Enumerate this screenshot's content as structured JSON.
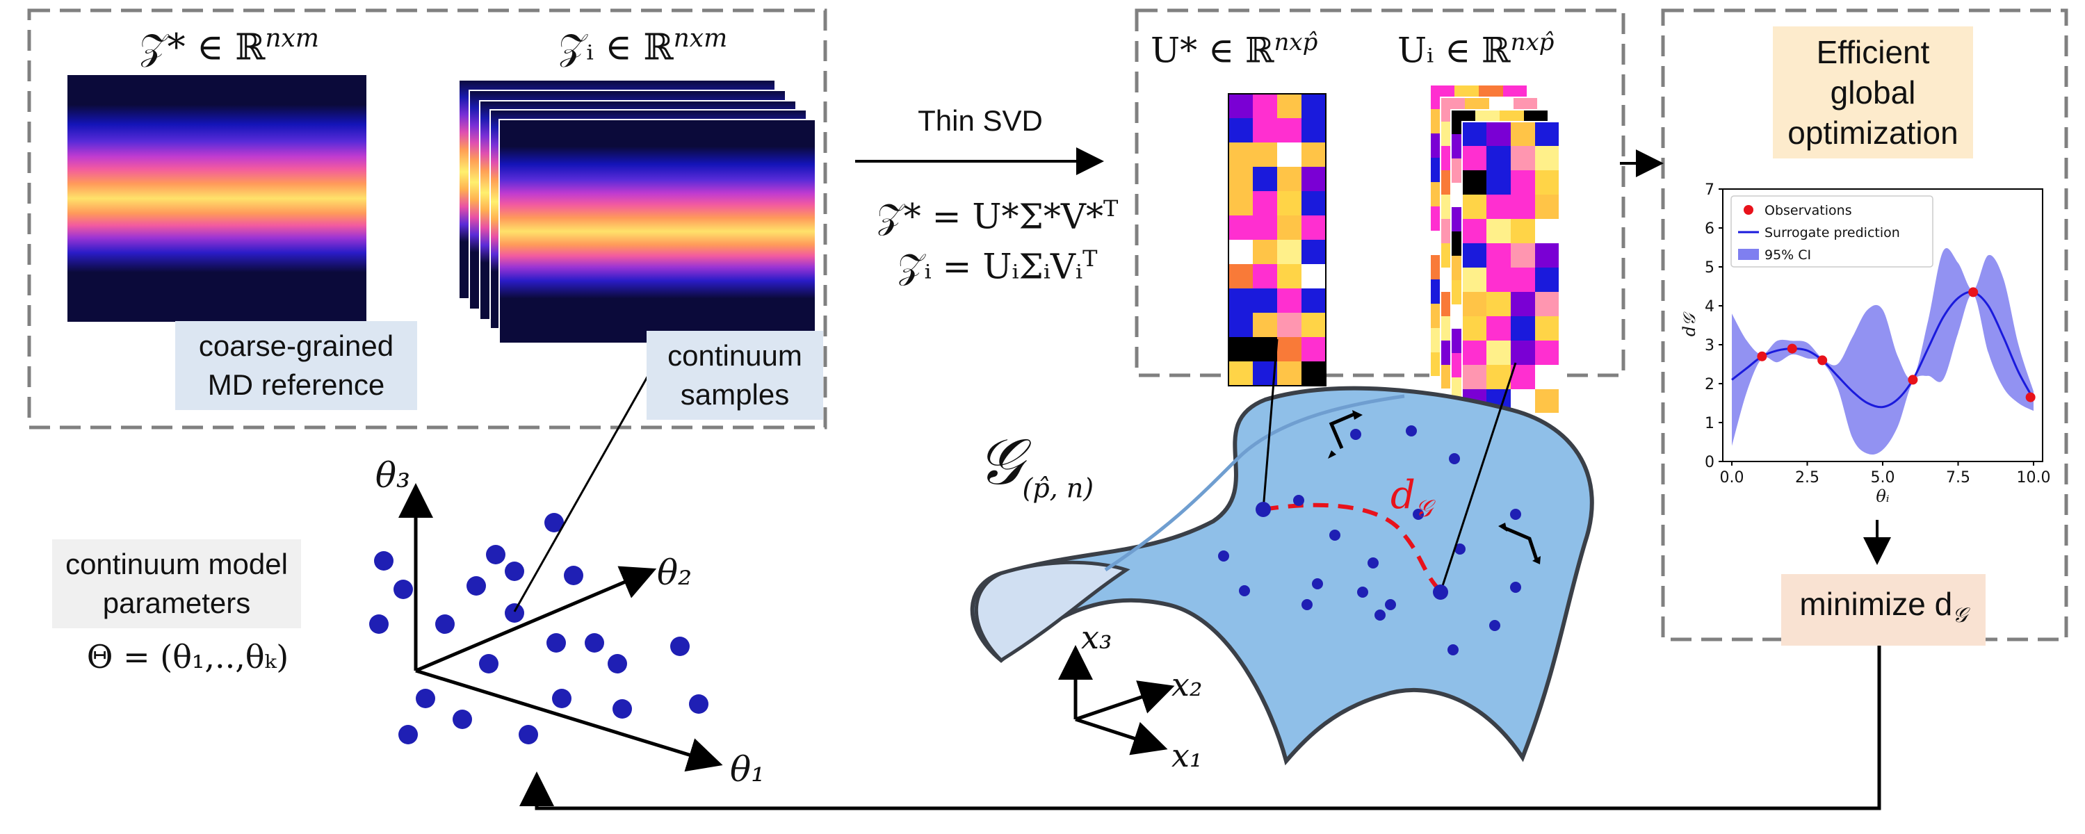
{
  "reference_panel": {
    "title": "𝒵* ∈ ℝ",
    "title_sup": "nxm",
    "label_line1": "coarse-grained",
    "label_line2": "MD reference"
  },
  "samples_panel": {
    "title": "𝒵ᵢ ∈ ℝ",
    "title_sup": "nxm",
    "label_line1": "continuum",
    "label_line2": "samples"
  },
  "svd": {
    "label": "Thin SVD",
    "eq1_lhs": "𝒵* = U*Σ*V*",
    "eq1_sup": "T",
    "eq2_lhs": "𝒵ᵢ = UᵢΣᵢVᵢ",
    "eq2_sup": "T"
  },
  "u_panel": {
    "u_star": "U* ∈ ℝ",
    "u_star_sup": "nxp̂",
    "u_i": "Uᵢ ∈ ℝ",
    "u_i_sup": "nxp̂"
  },
  "ego_panel": {
    "label_line1": "Efficient",
    "label_line2": "global",
    "label_line3": "optimization",
    "minimize_label": "minimize d",
    "minimize_sub": "𝒢"
  },
  "manifold": {
    "symbol": "𝒢",
    "symbol_sub": "(p̂, n)",
    "distance_label": "d",
    "distance_sub": "𝒢",
    "axes": [
      "x₃",
      "x₂",
      "x₁"
    ]
  },
  "parameter_space": {
    "label_line1": "continuum model",
    "label_line2": "parameters",
    "theta_def": "Θ = (θ₁,..,θₖ)",
    "axes": [
      "θ₃",
      "θ₂",
      "θ₁"
    ]
  },
  "colors": {
    "dash_box": "#808080",
    "dot_blue": "#1f1fb4",
    "manifold_fill": "#8fbfe8",
    "manifold_edge": "#3a3f47",
    "geodesic": "#e8121b",
    "surrogate": "#1a1adc",
    "ci_band": "#7f7ff0",
    "observation": "#e8121b"
  },
  "chart_data": {
    "type": "line",
    "xlabel": "θᵢ",
    "ylabel": "d𝒢",
    "xlim": [
      -0.3,
      10.3
    ],
    "ylim": [
      0,
      7
    ],
    "x_ticks": [
      "0.0",
      "2.5",
      "5.0",
      "7.5",
      "10.0"
    ],
    "y_ticks": [
      "0",
      "1",
      "2",
      "3",
      "4",
      "5",
      "6",
      "7"
    ],
    "legend": [
      "Observations",
      "Surrogate prediction",
      "95% CI"
    ],
    "legend_position": "top-left",
    "series": [
      {
        "name": "Surrogate prediction",
        "x": [
          0,
          0.5,
          1,
          1.5,
          2,
          2.5,
          3,
          3.5,
          4,
          4.5,
          5,
          5.5,
          6,
          6.5,
          7,
          7.5,
          8,
          8.5,
          9,
          9.5,
          10
        ],
        "values": [
          2.1,
          2.4,
          2.7,
          2.85,
          2.9,
          2.85,
          2.6,
          2.2,
          1.8,
          1.5,
          1.4,
          1.6,
          2.1,
          2.9,
          3.7,
          4.2,
          4.35,
          4.0,
          3.2,
          2.3,
          1.6
        ]
      },
      {
        "name": "95% CI",
        "x": [
          0,
          0.5,
          1,
          1.5,
          2,
          2.5,
          3,
          3.5,
          4,
          4.5,
          5,
          5.5,
          6,
          6.5,
          7,
          7.5,
          8,
          8.5,
          9,
          9.5,
          10
        ],
        "upper": [
          3.8,
          3.1,
          2.75,
          3.1,
          3.1,
          3.05,
          2.65,
          2.5,
          3.2,
          3.9,
          3.9,
          2.7,
          2.15,
          3.6,
          5.4,
          5.1,
          4.4,
          5.3,
          4.7,
          3.0,
          1.8
        ],
        "lower": [
          0.4,
          1.8,
          2.65,
          2.55,
          2.75,
          2.65,
          2.55,
          1.9,
          0.6,
          0.2,
          0.3,
          0.9,
          2.05,
          2.2,
          2.1,
          3.3,
          4.3,
          2.8,
          1.9,
          1.5,
          1.3
        ]
      },
      {
        "name": "Observations",
        "x": [
          1,
          2,
          3,
          6,
          8,
          9.9
        ],
        "values": [
          2.7,
          2.9,
          2.6,
          2.1,
          4.35,
          1.65
        ]
      }
    ]
  }
}
